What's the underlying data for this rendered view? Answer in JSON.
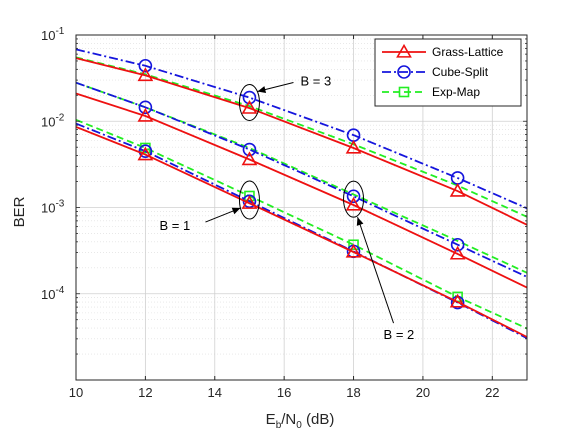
{
  "chart_data": {
    "type": "line",
    "title": "",
    "xlabel": "E_b/N_0 (dB)",
    "xlabel_parts": {
      "main": "E",
      "sub1": "b",
      "mid": "/N",
      "sub2": "0",
      "unit": " (dB)"
    },
    "ylabel": "BER",
    "xlim": [
      10,
      23
    ],
    "ylim": [
      1e-05,
      0.1
    ],
    "yscale": "log",
    "grid": true,
    "legend_position": "top-right",
    "x_ticks": [
      10,
      12,
      14,
      16,
      18,
      20,
      22
    ],
    "x_tick_labels": [
      "10",
      "12",
      "14",
      "16",
      "18",
      "20",
      "22"
    ],
    "y_ticks": [
      {
        "value": 0.1,
        "base": "10",
        "exp": "-1"
      },
      {
        "value": 0.01,
        "base": "10",
        "exp": "-2"
      },
      {
        "value": 0.001,
        "base": "10",
        "exp": "-3"
      },
      {
        "value": 0.0001,
        "base": "10",
        "exp": "-4"
      }
    ],
    "series": [
      {
        "name": "Grass-Lattice",
        "group": "B = 3",
        "color": "#ee1111",
        "dash": "solid",
        "marker": "triangle",
        "x": [
          10,
          12,
          15,
          18,
          21,
          23
        ],
        "y": [
          0.054,
          0.034,
          0.0142,
          0.0049,
          0.00155,
          0.00063
        ],
        "marker_x": [
          12,
          15,
          18,
          21
        ]
      },
      {
        "name": "Cube-Split",
        "group": "B = 3",
        "color": "#1515dd",
        "dash": "dashdot",
        "marker": "circle",
        "x": [
          10,
          12,
          15,
          18,
          21,
          23
        ],
        "y": [
          0.068,
          0.044,
          0.0188,
          0.0069,
          0.0022,
          0.00098
        ],
        "marker_x": [
          12,
          15,
          18,
          21
        ]
      },
      {
        "name": "Exp-Map",
        "group": "B = 3",
        "color": "#22ee22",
        "dash": "dashed",
        "marker": "square",
        "x": [
          10,
          12,
          15,
          18,
          21,
          23
        ],
        "y": [
          0.055,
          0.035,
          0.015,
          0.0054,
          0.0018,
          0.00078
        ],
        "marker_x": []
      },
      {
        "name": "Grass-Lattice",
        "group": "B = 2",
        "color": "#ee1111",
        "dash": "solid",
        "marker": "triangle",
        "x": [
          10,
          12,
          15,
          18,
          21,
          23
        ],
        "y": [
          0.021,
          0.0115,
          0.0036,
          0.00107,
          0.00029,
          0.000118
        ],
        "marker_x": [
          12,
          15,
          18,
          21
        ]
      },
      {
        "name": "Cube-Split",
        "group": "B = 2",
        "color": "#1515dd",
        "dash": "dashdot",
        "marker": "circle",
        "x": [
          10,
          12,
          15,
          18,
          21,
          23
        ],
        "y": [
          0.028,
          0.0145,
          0.0047,
          0.00135,
          0.00037,
          0.000157
        ],
        "marker_x": [
          12,
          15,
          18,
          21
        ]
      },
      {
        "name": "Exp-Map",
        "group": "B = 2",
        "color": "#22ee22",
        "dash": "dashed",
        "marker": "square",
        "x": [
          10,
          12,
          15,
          18,
          21,
          23
        ],
        "y": [
          0.028,
          0.0145,
          0.0049,
          0.00142,
          0.00041,
          0.000175
        ],
        "marker_x": []
      },
      {
        "name": "Grass-Lattice",
        "group": "B = 1",
        "color": "#ee1111",
        "dash": "solid",
        "marker": "triangle",
        "x": [
          10,
          12,
          15,
          18,
          21,
          23
        ],
        "y": [
          0.0086,
          0.0041,
          0.00112,
          0.000305,
          8.05e-05,
          3.15e-05
        ],
        "marker_x": [
          12,
          15,
          18,
          21
        ]
      },
      {
        "name": "Cube-Split",
        "group": "B = 1",
        "color": "#1515dd",
        "dash": "dashdot",
        "marker": "circle",
        "x": [
          10,
          12,
          15,
          18,
          21,
          23
        ],
        "y": [
          0.0094,
          0.0045,
          0.00118,
          0.00031,
          7.9e-05,
          3.05e-05
        ],
        "marker_x": [
          12,
          15,
          18,
          21
        ]
      },
      {
        "name": "Exp-Map",
        "group": "B = 1",
        "color": "#22ee22",
        "dash": "dashed",
        "marker": "square",
        "x": [
          10,
          12,
          15,
          18,
          21,
          23
        ],
        "y": [
          0.0104,
          0.0049,
          0.00136,
          0.00037,
          9.2e-05,
          3.95e-05
        ],
        "marker_x": [
          12,
          15,
          18,
          21
        ]
      }
    ],
    "legend": [
      {
        "label": "Grass-Lattice",
        "color": "#ee1111",
        "dash": "solid",
        "marker": "triangle"
      },
      {
        "label": "Cube-Split",
        "color": "#1515dd",
        "dash": "dashdot",
        "marker": "circle"
      },
      {
        "label": "Exp-Map",
        "color": "#22ee22",
        "dash": "dashed",
        "marker": "square"
      }
    ],
    "annotations": [
      {
        "text": "B = 3",
        "ellipse_x": 15,
        "ellipse_y": 0.0165
      },
      {
        "text": "B = 1",
        "ellipse_x": 15,
        "ellipse_y": 0.00122
      },
      {
        "text": "B = 2",
        "ellipse_x": 18,
        "ellipse_y": 0.00125
      }
    ]
  }
}
